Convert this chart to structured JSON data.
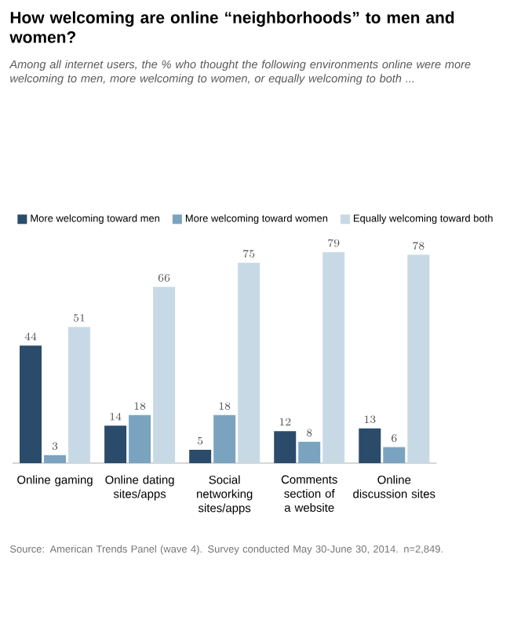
{
  "chart_data": {
    "type": "bar",
    "title": "How welcoming are online “neighborhoods” to men and women?",
    "subtitle": "Among all internet users, the % who thought the following environments online were more welcoming to men, more welcoming to women, or equally welcoming to both ...",
    "categories": [
      "Online gaming",
      "Online dating sites/apps",
      "Social networking sites/apps",
      "Comments section of a website",
      "Online discussion sites"
    ],
    "series": [
      {
        "name": "More welcoming toward men",
        "color": "#2b4b6b",
        "values": [
          44,
          14,
          5,
          12,
          13
        ]
      },
      {
        "name": "More welcoming toward women",
        "color": "#7aa3bf",
        "values": [
          3,
          18,
          18,
          8,
          6
        ]
      },
      {
        "name": "Equally welcoming toward both",
        "color": "#c8d9e6",
        "values": [
          51,
          66,
          75,
          79,
          78
        ]
      }
    ],
    "data_labels": true,
    "legend": "top",
    "annotations": [
      "Source: American Trends Panel (wave 4). Survey conducted May 30-June 30, 2014. n=2,849."
    ]
  }
}
